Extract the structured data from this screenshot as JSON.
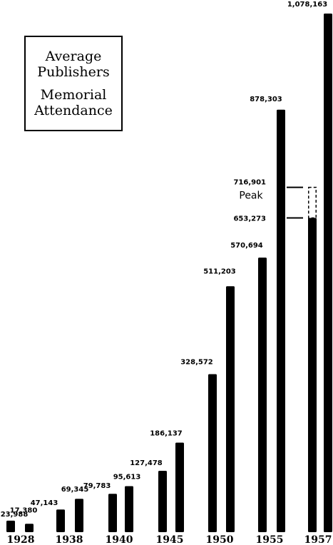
{
  "chart_data": {
    "type": "bar",
    "legend_placement": "top-left",
    "legend": {
      "publishers": [
        "Average",
        "Publishers"
      ],
      "memorial": [
        "Memorial",
        "Attendance"
      ]
    },
    "categories": [
      "1928",
      "1938",
      "1940",
      "1945",
      "1950",
      "1955",
      "1957"
    ],
    "series": [
      {
        "name": "Average Publishers",
        "values": [
          23988,
          47143,
          79783,
          127478,
          328572,
          570694,
          653273
        ],
        "labels": [
          "23,988",
          "47,143",
          "79,783",
          "127,478",
          "328,572",
          "570,694",
          "653,273"
        ]
      },
      {
        "name": "Memorial Attendance",
        "values": [
          17380,
          69345,
          95613,
          186137,
          511203,
          878303,
          1078163
        ],
        "labels": [
          "17,380",
          "69,345",
          "95,613",
          "186,137",
          "511,203",
          "878,303",
          "1,078,163"
        ]
      }
    ],
    "peak": {
      "label": "716,901",
      "value": 716901,
      "note": "Peak"
    },
    "ylim": [
      0,
      1078163
    ],
    "grid": false
  }
}
